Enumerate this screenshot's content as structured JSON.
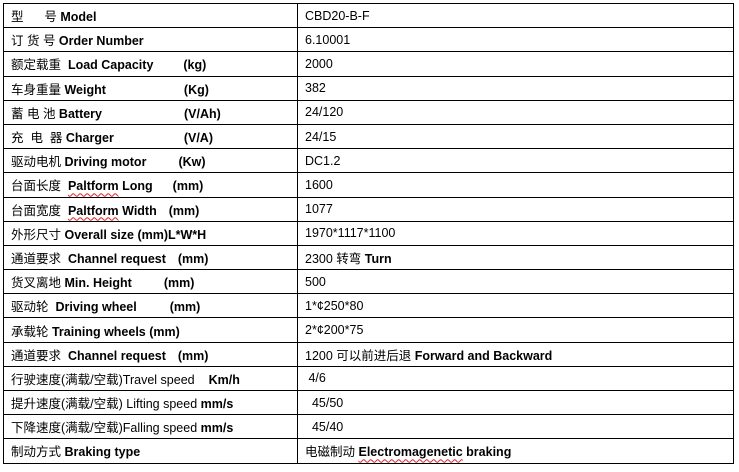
{
  "rows": [
    {
      "label": [
        {
          "t": "型      号 ",
          "b": false
        },
        {
          "t": "Model",
          "b": true
        }
      ],
      "value": [
        {
          "t": "CBD20-B-F",
          "b": false
        }
      ]
    },
    {
      "label": [
        {
          "t": "订 货 号 ",
          "b": false
        },
        {
          "t": "Order Number",
          "b": true
        }
      ],
      "value": [
        {
          "t": "6.10001",
          "b": false
        }
      ]
    },
    {
      "label": [
        {
          "t": "额定载重  ",
          "b": false
        },
        {
          "t": "Load Capacity",
          "b": true
        },
        {
          "t": "(kg)",
          "b": true,
          "gap": 30
        }
      ],
      "value": [
        {
          "t": "2000",
          "b": false
        }
      ]
    },
    {
      "label": [
        {
          "t": "车身重量 ",
          "b": false
        },
        {
          "t": "Weight",
          "b": true
        },
        {
          "t": "(Kg)",
          "b": true,
          "gap": 78
        }
      ],
      "value": [
        {
          "t": "382",
          "b": false
        }
      ]
    },
    {
      "label": [
        {
          "t": "蓄 电 池 ",
          "b": false
        },
        {
          "t": "Battery",
          "b": true
        },
        {
          "t": "(V/Ah)",
          "b": true,
          "gap": 82
        }
      ],
      "value": [
        {
          "t": "24/120",
          "b": false
        }
      ]
    },
    {
      "label": [
        {
          "t": "充  电  器 ",
          "b": false
        },
        {
          "t": "Charger",
          "b": true
        },
        {
          "t": "(V/A)",
          "b": true,
          "gap": 70
        }
      ],
      "value": [
        {
          "t": "24/15",
          "b": false
        }
      ]
    },
    {
      "label": [
        {
          "t": "驱动电机 ",
          "b": false
        },
        {
          "t": "Driving motor",
          "b": true
        },
        {
          "t": "(Kw)",
          "b": true,
          "gap": 32
        }
      ],
      "value": [
        {
          "t": "DC1.2",
          "b": false
        }
      ]
    },
    {
      "label": [
        {
          "t": "台面长度  ",
          "b": false
        },
        {
          "t": "Paltform",
          "b": true,
          "sq": true
        },
        {
          "t": " Long",
          "b": true
        },
        {
          "t": "(mm)",
          "b": true,
          "gap": 20
        }
      ],
      "value": [
        {
          "t": "1600",
          "b": false
        }
      ]
    },
    {
      "label": [
        {
          "t": "台面宽度  ",
          "b": false
        },
        {
          "t": "Paltform",
          "b": true,
          "sq": true
        },
        {
          "t": " Width",
          "b": true
        },
        {
          "t": "(mm)",
          "b": true,
          "gap": 12
        }
      ],
      "value": [
        {
          "t": "1077",
          "b": false
        }
      ]
    },
    {
      "label": [
        {
          "t": "外形尺寸 ",
          "b": false
        },
        {
          "t": "Overall size (mm)L*W*H",
          "b": true
        }
      ],
      "value": [
        {
          "t": "1970*1117*1100",
          "b": false
        }
      ]
    },
    {
      "label": [
        {
          "t": "通道要求  ",
          "b": false
        },
        {
          "t": "Channel request",
          "b": true
        },
        {
          "t": "(mm)",
          "b": true,
          "gap": 12
        }
      ],
      "value": [
        {
          "t": "2300 转弯 ",
          "b": false
        },
        {
          "t": "Turn",
          "b": true
        }
      ]
    },
    {
      "label": [
        {
          "t": "货叉离地 ",
          "b": false
        },
        {
          "t": "Min. Height",
          "b": true
        },
        {
          "t": "(mm)",
          "b": true,
          "gap": 32
        }
      ],
      "value": [
        {
          "t": "500",
          "b": false
        }
      ]
    },
    {
      "label": [
        {
          "t": "驱动轮  ",
          "b": false
        },
        {
          "t": "Driving wheel",
          "b": true
        },
        {
          "t": "(mm)",
          "b": true,
          "gap": 33
        }
      ],
      "value": [
        {
          "t": "1*¢250*80",
          "b": false
        }
      ]
    },
    {
      "label": [
        {
          "t": "承载轮 ",
          "b": false
        },
        {
          "t": "Training wheels (mm)",
          "b": true
        }
      ],
      "value": [
        {
          "t": "2*¢200*75",
          "b": false
        }
      ]
    },
    {
      "label": [
        {
          "t": "通道要求  ",
          "b": false
        },
        {
          "t": "Channel request",
          "b": true
        },
        {
          "t": "(mm)",
          "b": true,
          "gap": 12
        }
      ],
      "value": [
        {
          "t": "1200 可以前进后退 ",
          "b": false
        },
        {
          "t": "Forward and Backward",
          "b": true
        }
      ]
    },
    {
      "label": [
        {
          "t": "行驶速度(满载/空载)Travel speed",
          "b": false
        },
        {
          "t": "Km/h",
          "b": true,
          "gap": 14
        }
      ],
      "value": [
        {
          "t": " 4/6",
          "b": false
        }
      ]
    },
    {
      "label": [
        {
          "t": "提升速度(满载/空载) Lifting speed ",
          "b": false
        },
        {
          "t": "mm/s",
          "b": true
        }
      ],
      "value": [
        {
          "t": "  45/50",
          "b": false
        }
      ]
    },
    {
      "label": [
        {
          "t": "下降速度(满载/空载)Falling speed ",
          "b": false
        },
        {
          "t": "mm/s",
          "b": true
        }
      ],
      "value": [
        {
          "t": "  45/40",
          "b": false
        }
      ]
    },
    {
      "label": [
        {
          "t": "制动方式 ",
          "b": false
        },
        {
          "t": "Braking type",
          "b": true
        }
      ],
      "value": [
        {
          "t": "电磁制动 ",
          "b": false
        },
        {
          "t": "Electromagenetic",
          "b": true,
          "sq": true
        },
        {
          "t": " braking",
          "b": true
        }
      ]
    }
  ]
}
